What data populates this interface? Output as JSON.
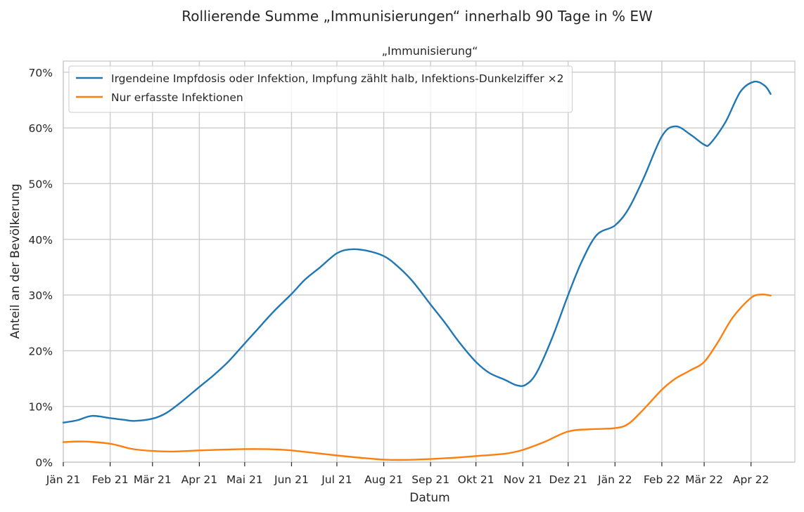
{
  "chart_data": {
    "type": "line",
    "title": "Rollierende Summe „Immunisierungen“ innerhalb 90 Tage in % EW",
    "subtitle": "„Immunisierung“",
    "xlabel": "Datum",
    "ylabel": "Anteil an der Bevölkerung",
    "ylim": [
      0,
      72
    ],
    "yticks": [
      0,
      10,
      20,
      30,
      40,
      50,
      60,
      70
    ],
    "ytick_labels": [
      "0%",
      "10%",
      "20%",
      "30%",
      "40%",
      "50%",
      "60%",
      "70%"
    ],
    "xlim": [
      "2021-01-01",
      "2022-04-30"
    ],
    "xticks": [
      "2021-01-01",
      "2021-02-01",
      "2021-03-01",
      "2021-04-01",
      "2021-05-01",
      "2021-06-01",
      "2021-07-01",
      "2021-08-01",
      "2021-09-01",
      "2021-10-01",
      "2021-11-01",
      "2021-12-01",
      "2022-01-01",
      "2022-02-01",
      "2022-03-01",
      "2022-04-01"
    ],
    "xtick_labels": [
      "Jän 21",
      "Feb 21",
      "Mär 21",
      "Apr 21",
      "Mai 21",
      "Jun 21",
      "Jul 21",
      "Aug 21",
      "Sep 21",
      "Okt 21",
      "Nov 21",
      "Dez 21",
      "Jän 22",
      "Feb 22",
      "Mär 22",
      "Apr 22"
    ],
    "grid": true,
    "legend_position": "top-left",
    "series": [
      {
        "name": "Irgendeine Impfdosis oder Infektion, Impfung zählt halb, Infektions-Dunkelziffer ×2",
        "color": "#1f77b4",
        "points": [
          [
            "2021-01-01",
            7.1
          ],
          [
            "2021-01-10",
            7.5
          ],
          [
            "2021-01-20",
            8.3
          ],
          [
            "2021-02-01",
            7.9
          ],
          [
            "2021-02-10",
            7.6
          ],
          [
            "2021-02-17",
            7.4
          ],
          [
            "2021-03-01",
            7.8
          ],
          [
            "2021-03-10",
            8.8
          ],
          [
            "2021-03-20",
            10.8
          ],
          [
            "2021-04-01",
            13.5
          ],
          [
            "2021-04-10",
            15.5
          ],
          [
            "2021-04-20",
            18.0
          ],
          [
            "2021-05-01",
            21.3
          ],
          [
            "2021-05-10",
            24.0
          ],
          [
            "2021-05-20",
            27.0
          ],
          [
            "2021-06-01",
            30.2
          ],
          [
            "2021-06-10",
            32.8
          ],
          [
            "2021-06-20",
            35.0
          ],
          [
            "2021-07-01",
            37.5
          ],
          [
            "2021-07-10",
            38.2
          ],
          [
            "2021-07-20",
            38.0
          ],
          [
            "2021-08-01",
            37.0
          ],
          [
            "2021-08-10",
            35.2
          ],
          [
            "2021-08-20",
            32.5
          ],
          [
            "2021-09-01",
            28.3
          ],
          [
            "2021-09-10",
            25.2
          ],
          [
            "2021-09-20",
            21.5
          ],
          [
            "2021-10-01",
            18.0
          ],
          [
            "2021-10-10",
            16.0
          ],
          [
            "2021-10-20",
            14.8
          ],
          [
            "2021-10-28",
            13.8
          ],
          [
            "2021-11-03",
            13.9
          ],
          [
            "2021-11-10",
            16.0
          ],
          [
            "2021-11-20",
            22.0
          ],
          [
            "2021-12-01",
            30.0
          ],
          [
            "2021-12-10",
            36.0
          ],
          [
            "2021-12-20",
            40.8
          ],
          [
            "2022-01-01",
            42.5
          ],
          [
            "2022-01-10",
            45.5
          ],
          [
            "2022-01-20",
            51.0
          ],
          [
            "2022-02-01",
            58.5
          ],
          [
            "2022-02-10",
            60.3
          ],
          [
            "2022-02-20",
            58.8
          ],
          [
            "2022-03-01",
            57.0
          ],
          [
            "2022-03-05",
            57.2
          ],
          [
            "2022-03-15",
            61.0
          ],
          [
            "2022-03-25",
            66.5
          ],
          [
            "2022-04-03",
            68.3
          ],
          [
            "2022-04-10",
            67.6
          ],
          [
            "2022-04-14",
            66.1
          ]
        ]
      },
      {
        "name": "Nur erfasste Infektionen",
        "color": "#ff7f0e",
        "points": [
          [
            "2021-01-01",
            3.6
          ],
          [
            "2021-01-15",
            3.7
          ],
          [
            "2021-02-01",
            3.3
          ],
          [
            "2021-02-15",
            2.4
          ],
          [
            "2021-03-01",
            2.0
          ],
          [
            "2021-03-15",
            1.9
          ],
          [
            "2021-04-01",
            2.1
          ],
          [
            "2021-05-01",
            2.35
          ],
          [
            "2021-05-20",
            2.3
          ],
          [
            "2021-06-01",
            2.1
          ],
          [
            "2021-07-01",
            1.2
          ],
          [
            "2021-07-20",
            0.7
          ],
          [
            "2021-08-01",
            0.45
          ],
          [
            "2021-08-15",
            0.4
          ],
          [
            "2021-09-01",
            0.55
          ],
          [
            "2021-09-20",
            0.85
          ],
          [
            "2021-10-01",
            1.1
          ],
          [
            "2021-10-20",
            1.5
          ],
          [
            "2021-11-01",
            2.2
          ],
          [
            "2021-11-15",
            3.6
          ],
          [
            "2021-12-01",
            5.5
          ],
          [
            "2021-12-15",
            5.9
          ],
          [
            "2022-01-01",
            6.1
          ],
          [
            "2022-01-10",
            6.9
          ],
          [
            "2022-01-20",
            9.5
          ],
          [
            "2022-02-01",
            13.0
          ],
          [
            "2022-02-10",
            15.0
          ],
          [
            "2022-02-20",
            16.5
          ],
          [
            "2022-03-01",
            18.0
          ],
          [
            "2022-03-10",
            21.5
          ],
          [
            "2022-03-20",
            26.0
          ],
          [
            "2022-04-01",
            29.5
          ],
          [
            "2022-04-08",
            30.1
          ],
          [
            "2022-04-14",
            29.9
          ]
        ]
      }
    ]
  }
}
